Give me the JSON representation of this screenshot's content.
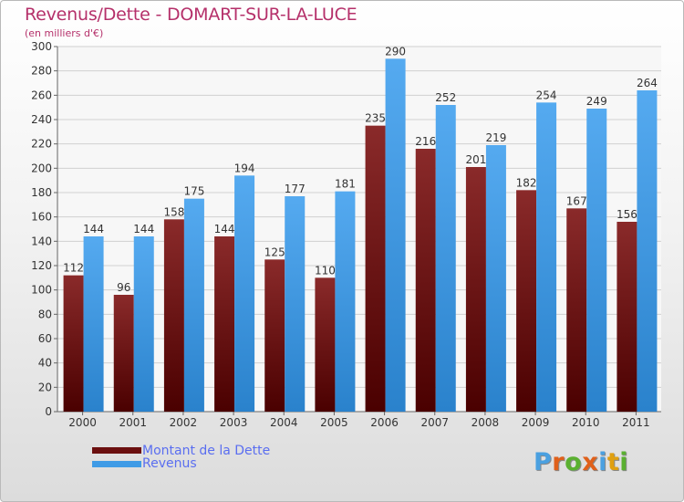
{
  "header": {
    "title": "Revenus/Dette - DOMART-SUR-LA-LUCE",
    "subtitle": "(en milliers d'€)"
  },
  "legend": {
    "items": [
      {
        "label": "Montant de la Dette",
        "color": "#6b0f0f"
      },
      {
        "label": "Revenus",
        "color": "#3f9be6"
      }
    ]
  },
  "logo": {
    "text": "Proxiti",
    "letters": [
      {
        "ch": "P",
        "color": "#4aa0e0"
      },
      {
        "ch": "r",
        "color": "#e0601a"
      },
      {
        "ch": "o",
        "color": "#5ab030"
      },
      {
        "ch": "x",
        "color": "#e0601a"
      },
      {
        "ch": "i",
        "color": "#4aa0e0"
      },
      {
        "ch": "t",
        "color": "#e0a010"
      },
      {
        "ch": "i",
        "color": "#5ab030"
      }
    ]
  },
  "chart_data": {
    "type": "bar",
    "title": "Revenus/Dette - DOMART-SUR-LA-LUCE",
    "ylabel": "(en milliers d'€)",
    "xlabel": "",
    "categories": [
      "2000",
      "2001",
      "2002",
      "2003",
      "2004",
      "2005",
      "2006",
      "2007",
      "2008",
      "2009",
      "2010",
      "2011"
    ],
    "series": [
      {
        "name": "Montant de la Dette",
        "color": "#6b0f0f",
        "values": [
          112,
          96,
          158,
          144,
          125,
          110,
          235,
          216,
          201,
          182,
          167,
          156
        ]
      },
      {
        "name": "Revenus",
        "color": "#3f9be6",
        "values": [
          144,
          144,
          175,
          194,
          177,
          181,
          290,
          252,
          219,
          254,
          249,
          264
        ]
      }
    ],
    "ylim": [
      0,
      300
    ],
    "yticks": [
      0,
      20,
      40,
      60,
      80,
      100,
      120,
      140,
      160,
      180,
      200,
      220,
      240,
      260,
      280,
      300
    ],
    "grid": true,
    "legend": "bottom-left"
  }
}
